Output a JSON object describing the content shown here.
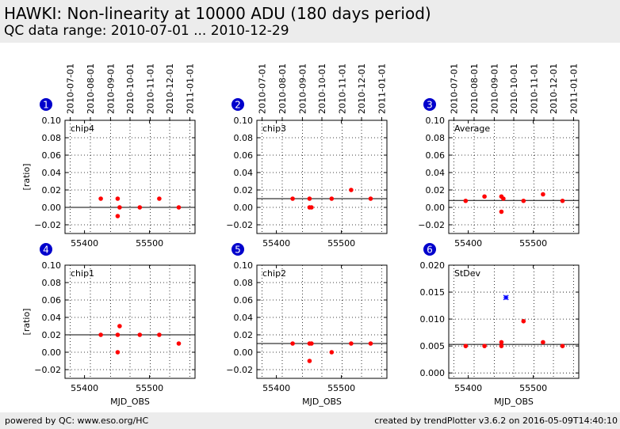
{
  "header": {
    "title": "HAWKI: Non-linearity at 10000 ADU (180 days period)",
    "subtitle": "QC data range: 2010-07-01 ... 2010-12-29"
  },
  "footer": {
    "left": "powered by QC: www.eso.org/HC",
    "right": "created by trendPlotter v3.6.2 on 2016-05-09T14:40:10"
  },
  "colors": {
    "marker": "#ff0000",
    "special_marker": "#0000ff",
    "badge": "#0000cc"
  },
  "date_ticks": [
    "2010-07-01",
    "2010-08-01",
    "2010-09-01",
    "2010-10-01",
    "2010-11-01",
    "2010-12-01",
    "2011-01-01"
  ],
  "date_tick_mjd": [
    55378,
    55409,
    55440,
    55470,
    55501,
    55531,
    55562
  ],
  "chart_data": [
    {
      "type": "scatter",
      "badge": "1",
      "label": "chip4",
      "ylabel": "[ratio]",
      "xlabel": "",
      "xlim": [
        55370,
        55570
      ],
      "ylim": [
        -0.03,
        0.1
      ],
      "yticks": [
        -0.02,
        0,
        0.02,
        0.04,
        0.06,
        0.08,
        0.1
      ],
      "ytick_labels": [
        "−0.02",
        "0.00",
        "0.02",
        "0.04",
        "0.06",
        "0.08",
        "0.10"
      ],
      "xticks": [
        55400,
        55500
      ],
      "xtick_labels": [
        "55400",
        "55500"
      ],
      "hline": 0.0,
      "points": [
        {
          "x": 55425,
          "y": 0.01
        },
        {
          "x": 55451,
          "y": 0.01
        },
        {
          "x": 55451,
          "y": -0.01
        },
        {
          "x": 55454,
          "y": 0.0
        },
        {
          "x": 55485,
          "y": 0.0
        },
        {
          "x": 55515,
          "y": 0.01
        },
        {
          "x": 55545,
          "y": 0.0
        }
      ]
    },
    {
      "type": "scatter",
      "badge": "2",
      "label": "chip3",
      "ylabel": "",
      "xlabel": "",
      "xlim": [
        55370,
        55570
      ],
      "ylim": [
        -0.03,
        0.1
      ],
      "yticks": [
        -0.02,
        0,
        0.02,
        0.04,
        0.06,
        0.08,
        0.1
      ],
      "ytick_labels": [
        "−0.02",
        "0.00",
        "0.02",
        "0.04",
        "0.06",
        "0.08",
        "0.10"
      ],
      "xticks": [
        55400,
        55500
      ],
      "xtick_labels": [
        "55400",
        "55500"
      ],
      "hline": 0.01,
      "points": [
        {
          "x": 55425,
          "y": 0.01
        },
        {
          "x": 55451,
          "y": 0.01
        },
        {
          "x": 55451,
          "y": 0.0
        },
        {
          "x": 55454,
          "y": 0.0
        },
        {
          "x": 55485,
          "y": 0.01
        },
        {
          "x": 55515,
          "y": 0.02
        },
        {
          "x": 55545,
          "y": 0.01
        }
      ]
    },
    {
      "type": "scatter",
      "badge": "3",
      "label": "Average",
      "ylabel": "",
      "xlabel": "",
      "xlim": [
        55370,
        55570
      ],
      "ylim": [
        -0.03,
        0.1
      ],
      "yticks": [
        -0.02,
        0,
        0.02,
        0.04,
        0.06,
        0.08,
        0.1
      ],
      "ytick_labels": [
        "−0.02",
        "0.00",
        "0.02",
        "0.04",
        "0.06",
        "0.08",
        "0.10"
      ],
      "xticks": [
        55400,
        55500
      ],
      "xtick_labels": [
        "55400",
        "55500"
      ],
      "hline": 0.008,
      "points": [
        {
          "x": 55396,
          "y": 0.0075
        },
        {
          "x": 55425,
          "y": 0.0125
        },
        {
          "x": 55451,
          "y": 0.0125
        },
        {
          "x": 55454,
          "y": 0.01
        },
        {
          "x": 55451,
          "y": -0.005
        },
        {
          "x": 55485,
          "y": 0.0075
        },
        {
          "x": 55515,
          "y": 0.015
        },
        {
          "x": 55545,
          "y": 0.0075
        }
      ]
    },
    {
      "type": "scatter",
      "badge": "4",
      "label": "chip1",
      "ylabel": "[ratio]",
      "xlabel": "MJD_OBS",
      "xlim": [
        55370,
        55570
      ],
      "ylim": [
        -0.03,
        0.1
      ],
      "yticks": [
        -0.02,
        0,
        0.02,
        0.04,
        0.06,
        0.08,
        0.1
      ],
      "ytick_labels": [
        "−0.02",
        "0.00",
        "0.02",
        "0.04",
        "0.06",
        "0.08",
        "0.10"
      ],
      "xticks": [
        55400,
        55500
      ],
      "xtick_labels": [
        "55400",
        "55500"
      ],
      "hline": 0.02,
      "points": [
        {
          "x": 55425,
          "y": 0.02
        },
        {
          "x": 55451,
          "y": 0.02
        },
        {
          "x": 55451,
          "y": 0.0
        },
        {
          "x": 55454,
          "y": 0.03
        },
        {
          "x": 55485,
          "y": 0.02
        },
        {
          "x": 55515,
          "y": 0.02
        },
        {
          "x": 55545,
          "y": 0.01
        }
      ]
    },
    {
      "type": "scatter",
      "badge": "5",
      "label": "chip2",
      "ylabel": "",
      "xlabel": "MJD_OBS",
      "xlim": [
        55370,
        55570
      ],
      "ylim": [
        -0.03,
        0.1
      ],
      "yticks": [
        -0.02,
        0,
        0.02,
        0.04,
        0.06,
        0.08,
        0.1
      ],
      "ytick_labels": [
        "−0.02",
        "0.00",
        "0.02",
        "0.04",
        "0.06",
        "0.08",
        "0.10"
      ],
      "xticks": [
        55400,
        55500
      ],
      "xtick_labels": [
        "55400",
        "55500"
      ],
      "hline": 0.01,
      "points": [
        {
          "x": 55425,
          "y": 0.01
        },
        {
          "x": 55451,
          "y": 0.01
        },
        {
          "x": 55454,
          "y": 0.01
        },
        {
          "x": 55451,
          "y": -0.01
        },
        {
          "x": 55485,
          "y": 0.0
        },
        {
          "x": 55515,
          "y": 0.01
        },
        {
          "x": 55545,
          "y": 0.01
        }
      ]
    },
    {
      "type": "scatter",
      "badge": "6",
      "label": "StDev",
      "ylabel": "",
      "xlabel": "MJD_OBS",
      "xlim": [
        55370,
        55570
      ],
      "ylim": [
        -0.001,
        0.02
      ],
      "yticks": [
        0,
        0.005,
        0.01,
        0.015,
        0.02
      ],
      "ytick_labels": [
        "0.000",
        "0.005",
        "0.010",
        "0.015",
        "0.020"
      ],
      "xticks": [
        55400,
        55500
      ],
      "xtick_labels": [
        "55400",
        "55500"
      ],
      "hline": 0.0053,
      "points": [
        {
          "x": 55396,
          "y": 0.005
        },
        {
          "x": 55425,
          "y": 0.005
        },
        {
          "x": 55451,
          "y": 0.0057
        },
        {
          "x": 55451,
          "y": 0.005
        },
        {
          "x": 55485,
          "y": 0.0096
        },
        {
          "x": 55515,
          "y": 0.0057
        },
        {
          "x": 55545,
          "y": 0.005
        }
      ],
      "special_points": [
        {
          "x": 55458,
          "y": 0.014
        }
      ]
    }
  ]
}
